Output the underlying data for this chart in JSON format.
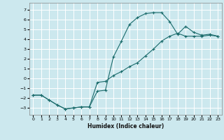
{
  "xlabel": "Humidex (Indice chaleur)",
  "background_color": "#cce8ee",
  "line_color": "#1a6b6b",
  "grid_color": "#ffffff",
  "xlim": [
    -0.5,
    23.5
  ],
  "ylim": [
    -3.7,
    7.7
  ],
  "xticks": [
    0,
    1,
    2,
    3,
    4,
    5,
    6,
    7,
    8,
    9,
    10,
    11,
    12,
    13,
    14,
    15,
    16,
    17,
    18,
    19,
    20,
    21,
    22,
    23
  ],
  "yticks": [
    -3,
    -2,
    -1,
    0,
    1,
    2,
    3,
    4,
    5,
    6,
    7
  ],
  "curve1_x": [
    0,
    1,
    2,
    3,
    4,
    5,
    6,
    7,
    8,
    9,
    10,
    11,
    12,
    13,
    14,
    15,
    16,
    17,
    18,
    19,
    20,
    21,
    22,
    23
  ],
  "curve1_y": [
    -1.7,
    -1.7,
    -2.2,
    -2.7,
    -3.1,
    -3.0,
    -2.9,
    -2.9,
    -1.3,
    -1.2,
    2.2,
    3.8,
    5.5,
    6.2,
    6.6,
    6.7,
    6.7,
    5.8,
    4.5,
    5.3,
    4.7,
    4.4,
    4.5,
    4.3
  ],
  "curve2_x": [
    0,
    1,
    2,
    3,
    4,
    5,
    6,
    7,
    8,
    9,
    10,
    11,
    12,
    13,
    14,
    15,
    16,
    17,
    18,
    19,
    20,
    21,
    22,
    23
  ],
  "curve2_y": [
    -1.7,
    -1.7,
    -2.2,
    -2.7,
    -3.1,
    -3.0,
    -2.9,
    -2.9,
    -0.4,
    -0.3,
    0.3,
    0.7,
    1.2,
    1.6,
    2.3,
    3.0,
    3.8,
    4.3,
    4.6,
    4.3,
    4.3,
    4.3,
    4.4,
    4.3
  ]
}
